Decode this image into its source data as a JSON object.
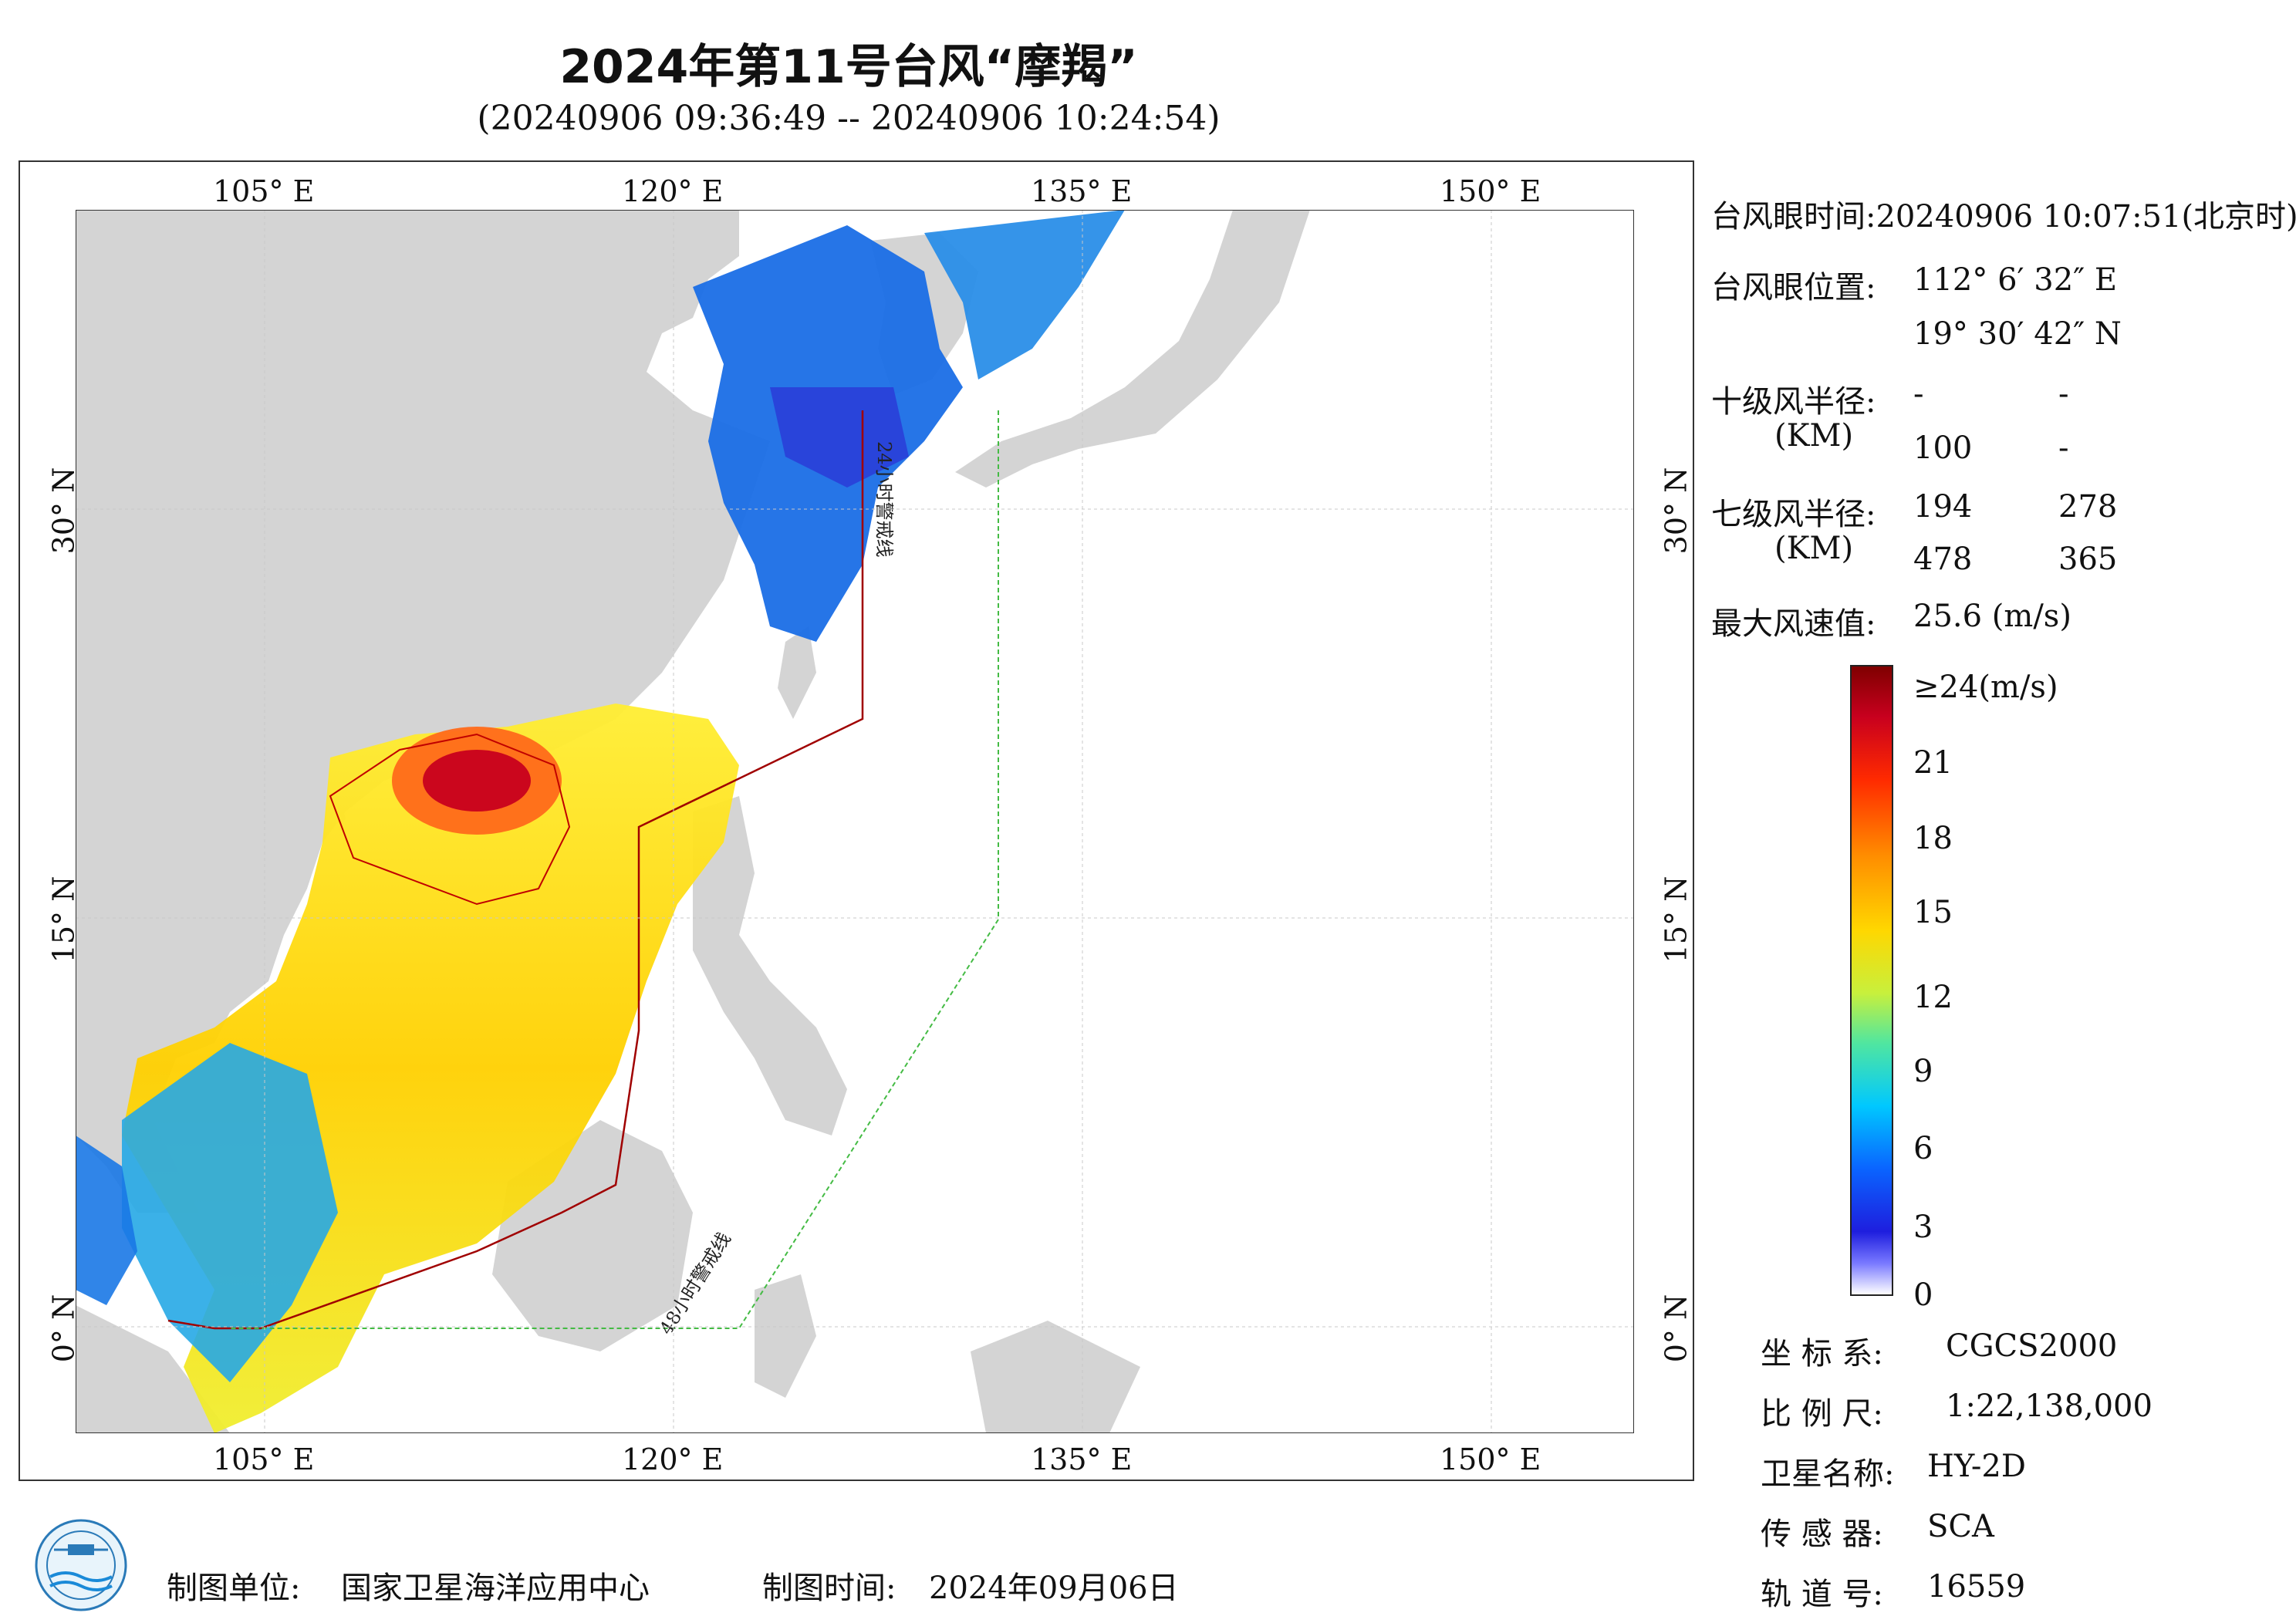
{
  "title": "2024年第11号台风“摩羯”",
  "subtitle": "(20240906 09:36:49 -- 20240906 10:24:54)",
  "map": {
    "lon_ticks": [
      "105° E",
      "120° E",
      "135° E",
      "150° E"
    ],
    "lat_ticks": [
      "30° N",
      "15° N",
      "0° N"
    ],
    "warning_line_24h": "24小时警戒线",
    "warning_line_48h": "48小时警戒线",
    "colors": {
      "land": "#d4d4d4",
      "ocean": "#ffffff",
      "warning_24h": "#a00000",
      "warning_48h": "#44bb44",
      "wind_radius": "#c00000"
    }
  },
  "info": {
    "eye_time_label": "台风眼时间:",
    "eye_time_value": "20240906 10:07:51(北京时)",
    "eye_pos_label": "台风眼位置:",
    "eye_lon": "112° 6′ 32″ E",
    "eye_lat": "19° 30′ 42″ N",
    "r10_label": "十级风半径:",
    "r10_unit": "(KM)",
    "r10_values": [
      "-",
      "-",
      "100",
      "-"
    ],
    "r7_label": "七级风半径:",
    "r7_unit": "(KM)",
    "r7_values": [
      "194",
      "278",
      "478",
      "365"
    ],
    "max_wind_label": "最大风速值:",
    "max_wind_value": "25.6  (m/s)"
  },
  "colorbar": {
    "labels": [
      "≥24(m/s)",
      "21",
      "18",
      "15",
      "12",
      "9",
      "6",
      "3",
      "0"
    ]
  },
  "metadata": {
    "coord_label": "坐 标 系:",
    "coord_value": "CGCS2000",
    "scale_label": "比 例 尺:",
    "scale_value": "1:22,138,000",
    "sat_label": "卫星名称:",
    "sat_value": "HY-2D",
    "sensor_label": "传 感 器:",
    "sensor_value": "SCA",
    "orbit_label": "轨 道 号:",
    "orbit_value": "16559"
  },
  "footer": {
    "unit_label": "制图单位:",
    "unit_value": "国家卫星海洋应用中心",
    "time_label": "制图时间:",
    "time_value": "2024年09月06日"
  }
}
